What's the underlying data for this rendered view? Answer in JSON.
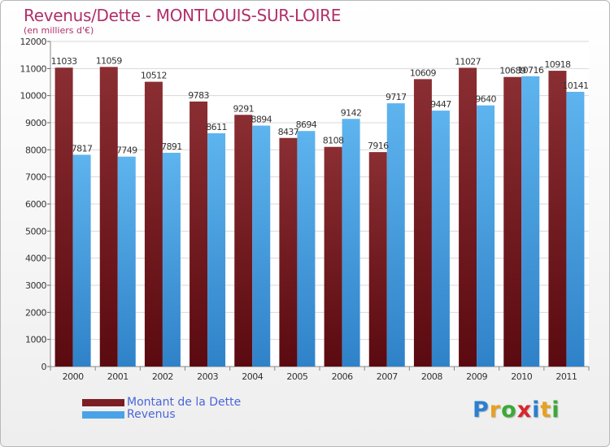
{
  "title": "Revenus/Dette - MONTLOUIS-SUR-LOIRE",
  "subtitle": "(en milliers d'€)",
  "chart_data": {
    "type": "bar",
    "categories": [
      "2000",
      "2001",
      "2002",
      "2003",
      "2004",
      "2005",
      "2006",
      "2007",
      "2008",
      "2009",
      "2010",
      "2011"
    ],
    "series": [
      {
        "name": "Montant de la Dette",
        "color": "#7a1e24",
        "values": [
          11033,
          11059,
          10512,
          9783,
          9291,
          8437,
          8108,
          7916,
          10609,
          11027,
          10689,
          10918
        ]
      },
      {
        "name": "Revenus",
        "color": "#4aa3e6",
        "values": [
          7817,
          7749,
          7891,
          8611,
          8894,
          8694,
          9142,
          9717,
          9447,
          9640,
          10716,
          10141
        ]
      }
    ],
    "data_labels": [
      [
        "11033",
        "11059",
        "10512",
        "9783",
        "9291",
        "8437",
        "8108",
        "7916",
        "10609",
        "11027",
        "10689",
        "10918"
      ],
      [
        "7817",
        "7749",
        "7891",
        "8611",
        "8894",
        "8694",
        "9142",
        "9717",
        "9447",
        "9640",
        "10716",
        "10141"
      ]
    ],
    "y_ticks": [
      "0",
      "1000",
      "2000",
      "3000",
      "4000",
      "5000",
      "6000",
      "7000",
      "8000",
      "9000",
      "10000",
      "11000",
      "12000"
    ],
    "ylim": [
      0,
      12000
    ],
    "grid": true,
    "legend_position": "bottom-left"
  },
  "legend": [
    {
      "label": "Montant de la Dette",
      "color": "#7a1e24"
    },
    {
      "label": "Revenus",
      "color": "#4aa3e6"
    }
  ],
  "logo": {
    "text": "Proxiti",
    "letters": [
      {
        "ch": "P",
        "color": "#2a7fd0"
      },
      {
        "ch": "r",
        "color": "#e8a020"
      },
      {
        "ch": "o",
        "color": "#3aaa35"
      },
      {
        "ch": "x",
        "color": "#d8262c"
      },
      {
        "ch": "i",
        "color": "#2a7fd0"
      },
      {
        "ch": "t",
        "color": "#e8a020"
      },
      {
        "ch": "i",
        "color": "#3aaa35"
      }
    ]
  }
}
